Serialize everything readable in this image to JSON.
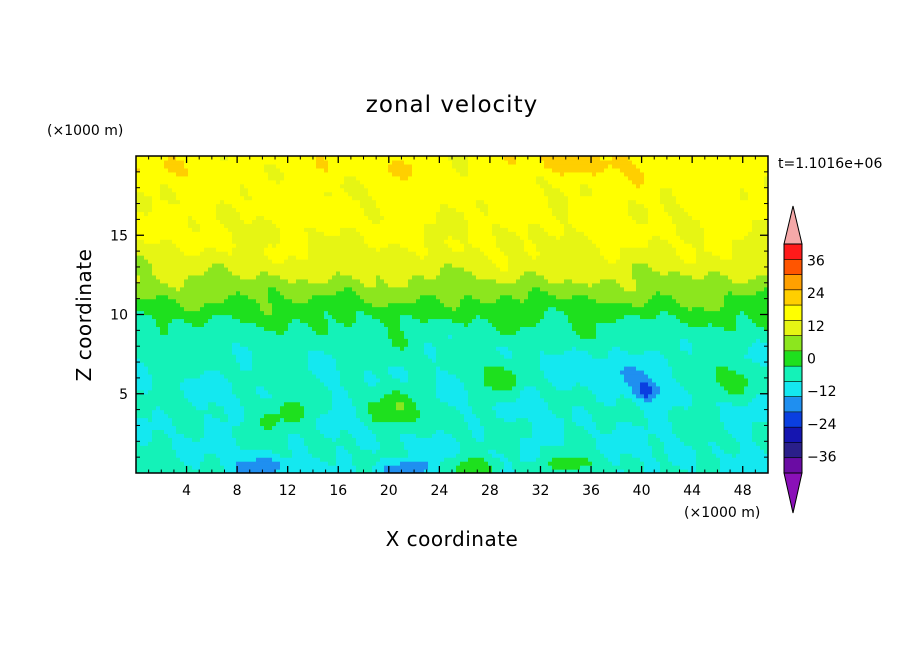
{
  "chart_data": {
    "type": "heatmap",
    "title": "zonal velocity",
    "xlabel": "X coordinate",
    "ylabel": "Z coordinate",
    "x_unit": "(×1000 m)",
    "y_unit": "(×1000 m)",
    "time_label": "t=1.1016e+06",
    "xlim": [
      0,
      50
    ],
    "ylim": [
      0,
      20
    ],
    "x_ticks": [
      4,
      8,
      12,
      16,
      20,
      24,
      28,
      32,
      36,
      40,
      44,
      48
    ],
    "y_ticks": [
      5,
      10,
      15
    ],
    "x_tick_labels": [
      "4",
      "8",
      "12",
      "16",
      "20",
      "24",
      "28",
      "32",
      "36",
      "40",
      "44",
      "48"
    ],
    "y_tick_labels": [
      "5",
      "10",
      "15"
    ],
    "colorbar": {
      "levels": [
        -42,
        -36,
        -30,
        -24,
        -18,
        -12,
        -6,
        0,
        6,
        12,
        18,
        24,
        30,
        36,
        42
      ],
      "tick_values": [
        -36,
        -24,
        -12,
        0,
        12,
        24,
        36
      ],
      "tick_labels": [
        "−36",
        "−24",
        "−12",
        "0",
        "12",
        "24",
        "36"
      ],
      "colors": [
        "#6a0ca3",
        "#2a1f8a",
        "#1515b0",
        "#0a3fe0",
        "#1f8ff0",
        "#14e8f0",
        "#14f2b8",
        "#1ee01e",
        "#8ce61e",
        "#e6f514",
        "#ffff00",
        "#ffcf00",
        "#ffa000",
        "#ff5500",
        "#ff1a1a"
      ],
      "under_color": "#8a10b8",
      "over_color": "#f5a8a8",
      "extend": "both"
    },
    "field_summary": [
      {
        "z_range": [
          17,
          20
        ],
        "u_approx": 20
      },
      {
        "z_range": [
          14,
          17
        ],
        "u_approx": 13
      },
      {
        "z_range": [
          9,
          14
        ],
        "u_approx": 3
      },
      {
        "z_range": [
          0,
          9
        ],
        "u_approx": -6
      }
    ]
  }
}
